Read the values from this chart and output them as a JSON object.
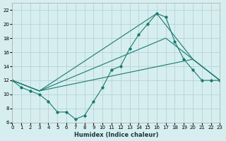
{
  "xlabel": "Humidex (Indice chaleur)",
  "ylabel": "",
  "bg_color": "#d6eef0",
  "grid_color": "#b0cdd0",
  "line_color": "#1a7a6e",
  "xlim": [
    0,
    23
  ],
  "ylim": [
    6,
    23
  ],
  "xticks": [
    0,
    1,
    2,
    3,
    4,
    5,
    6,
    7,
    8,
    9,
    10,
    11,
    12,
    13,
    14,
    15,
    16,
    17,
    18,
    19,
    20,
    21,
    22,
    23
  ],
  "yticks": [
    6,
    8,
    10,
    12,
    14,
    16,
    18,
    20,
    22
  ],
  "lines": [
    {
      "x": [
        0,
        1,
        2,
        3,
        4,
        5,
        6,
        7,
        8,
        9,
        10,
        11,
        12,
        13,
        14,
        15,
        16,
        17,
        18,
        19,
        20,
        21,
        22,
        23
      ],
      "y": [
        12,
        11,
        10.5,
        10,
        9,
        7.5,
        7.5,
        6.5,
        7,
        9,
        11,
        13.5,
        14,
        16.5,
        18.5,
        20,
        21.5,
        21,
        17.5,
        15,
        13.5,
        12,
        12,
        12
      ]
    },
    {
      "x": [
        0,
        3,
        16,
        20,
        23
      ],
      "y": [
        12,
        10.5,
        21.5,
        15,
        12
      ]
    },
    {
      "x": [
        0,
        3,
        17,
        20,
        23
      ],
      "y": [
        12,
        10.5,
        18,
        15,
        12
      ]
    },
    {
      "x": [
        0,
        3,
        20,
        23
      ],
      "y": [
        12,
        10.5,
        15,
        12
      ]
    }
  ]
}
